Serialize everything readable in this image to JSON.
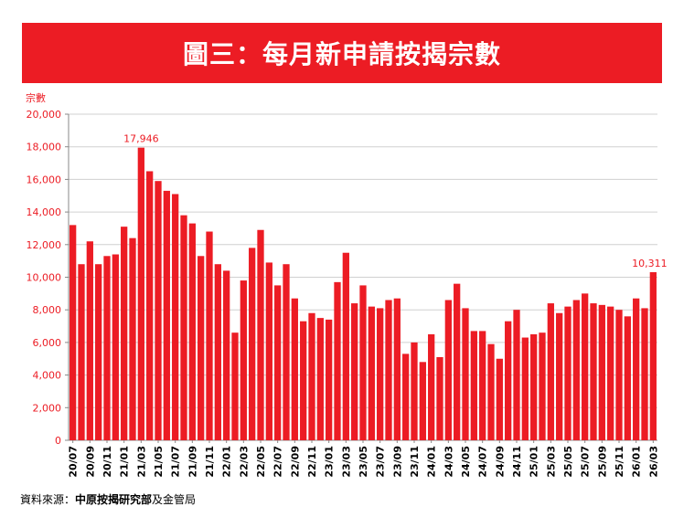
{
  "header": {
    "title": "圖三：每月新申請按揭宗數"
  },
  "source": {
    "prefix": "資料來源：",
    "bold": "中原按揭研究部",
    "suffix": "及金管局"
  },
  "colors": {
    "accent": "#ec1c24",
    "bar": "#ec1c24",
    "axis_text": "#ec1c24",
    "grid": "#d0d0d0"
  },
  "chart_data": {
    "type": "bar",
    "title": "",
    "ylabel": "宗數",
    "xlabel": "",
    "ylim": [
      0,
      20000
    ],
    "yticks": [
      0,
      2000,
      4000,
      6000,
      8000,
      10000,
      12000,
      14000,
      16000,
      18000,
      20000
    ],
    "ytick_labels": [
      "0",
      "2,000",
      "4,000",
      "6,000",
      "8,000",
      "10,000",
      "12,000",
      "14,000",
      "16,000",
      "18,000",
      "20,000"
    ],
    "grid": true,
    "categories": [
      "20/07",
      "20/08",
      "20/09",
      "20/10",
      "20/11",
      "20/12",
      "21/01",
      "21/02",
      "21/03",
      "21/04",
      "21/05",
      "21/06",
      "21/07",
      "21/08",
      "21/09",
      "21/10",
      "21/11",
      "21/12",
      "22/01",
      "22/02",
      "22/03",
      "22/04",
      "22/05",
      "22/06",
      "22/07",
      "22/08",
      "22/09",
      "22/10",
      "22/11",
      "22/12",
      "23/01",
      "23/02",
      "23/03",
      "23/04",
      "23/05",
      "23/06",
      "23/07",
      "23/08",
      "23/09",
      "23/10",
      "23/11",
      "23/12",
      "24/01",
      "24/02",
      "24/03",
      "24/04",
      "24/05",
      "24/06",
      "24/07",
      "24/08",
      "24/09",
      "24/10",
      "24/11",
      "24/12",
      "25/01",
      "25/02",
      "25/03",
      "25/04",
      "25/05",
      "25/06",
      "25/07",
      "25/08",
      "25/09",
      "25/10",
      "25/11",
      "25/12",
      "26/01",
      "26/02",
      "26/03"
    ],
    "xtick_labels": [
      "20/07",
      "20/09",
      "20/11",
      "21/01",
      "21/03",
      "21/05",
      "21/07",
      "21/09",
      "21/11",
      "22/01",
      "22/03",
      "22/05",
      "22/07",
      "22/09",
      "22/11",
      "23/01",
      "23/03",
      "23/05",
      "23/07",
      "23/09",
      "23/11",
      "24/01",
      "24/03",
      "24/05",
      "24/07",
      "24/09",
      "24/11",
      "25/01",
      "25/03",
      "25/05",
      "25/07",
      "25/09",
      "25/11",
      "26/01",
      "26/03"
    ],
    "values": [
      13200,
      10800,
      12200,
      10800,
      11300,
      11400,
      13100,
      12400,
      17946,
      16500,
      15900,
      15300,
      15100,
      13800,
      13300,
      11300,
      12800,
      10800,
      10400,
      6600,
      9800,
      11800,
      12900,
      10900,
      9500,
      10800,
      8700,
      7300,
      7800,
      7500,
      7400,
      9700,
      11500,
      8400,
      9500,
      8200,
      8100,
      8600,
      8700,
      5300,
      6000,
      4800,
      6500,
      5100,
      8600,
      9600,
      8100,
      6700,
      6700,
      5900,
      5000,
      7300,
      8000,
      6300,
      6500,
      6600,
      8400,
      7800,
      8200,
      8600,
      9000,
      8400,
      8300,
      8200,
      8000,
      7600,
      8700,
      8100,
      10311
    ],
    "annotations": [
      {
        "category": "21/03",
        "label": "17,946"
      },
      {
        "category": "26/03",
        "label": "10,311"
      }
    ]
  }
}
